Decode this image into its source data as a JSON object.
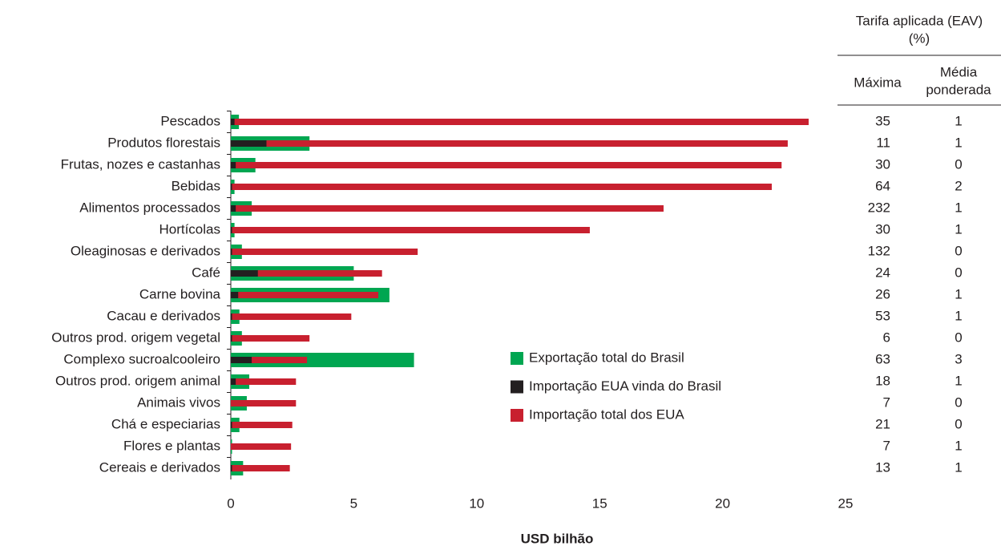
{
  "chart_data": {
    "type": "bar",
    "orientation": "horizontal",
    "overlay": true,
    "xlabel": "USD bilhão",
    "categories": [
      "Pescados",
      "Produtos florestais",
      "Frutas, nozes e castanhas",
      "Bebidas",
      "Alimentos processados",
      "Hortícolas",
      "Oleaginosas e derivados",
      "Café",
      "Carne bovina",
      "Cacau e derivados",
      "Outros prod. origem vegetal",
      "Complexo sucroalcooleiro",
      "Outros prod. origem animal",
      "Animais vivos",
      "Chá e especiarias",
      "Flores e plantas",
      "Cereais e derivados"
    ],
    "series": [
      {
        "name": "Exportação total do Brasil",
        "color": "#00a651",
        "values": [
          0.33,
          3.2,
          1.0,
          0.15,
          0.85,
          0.15,
          0.45,
          5.0,
          6.45,
          0.35,
          0.45,
          7.45,
          0.75,
          0.65,
          0.35,
          0.05,
          0.5
        ]
      },
      {
        "name": "Importação EUA vinda do Brasil",
        "color": "#231f20",
        "values": [
          0.15,
          1.45,
          0.2,
          0.05,
          0.2,
          0.05,
          0.05,
          1.1,
          0.3,
          0.05,
          0.05,
          0.85,
          0.2,
          0.0,
          0.05,
          0.0,
          0.05
        ]
      },
      {
        "name": "Importação total dos EUA",
        "color": "#c8202f",
        "values": [
          23.5,
          22.65,
          22.4,
          22.0,
          17.6,
          14.6,
          7.6,
          6.15,
          6.0,
          4.9,
          3.2,
          3.1,
          2.65,
          2.65,
          2.5,
          2.45,
          2.4
        ]
      }
    ],
    "xlim": [
      0,
      25
    ],
    "xticks": [
      0,
      5,
      10,
      15,
      20,
      25
    ]
  },
  "table": {
    "title": [
      "Tarifa aplicada (EAV)",
      "(%)"
    ],
    "columns": [
      [
        "Máxima"
      ],
      [
        "Média",
        "ponderada"
      ]
    ],
    "maxima": [
      35,
      11,
      30,
      64,
      232,
      30,
      132,
      24,
      26,
      53,
      6,
      63,
      18,
      7,
      21,
      7,
      13
    ],
    "media": [
      1,
      1,
      0,
      2,
      1,
      1,
      0,
      0,
      1,
      1,
      0,
      3,
      1,
      0,
      0,
      1,
      1
    ]
  }
}
